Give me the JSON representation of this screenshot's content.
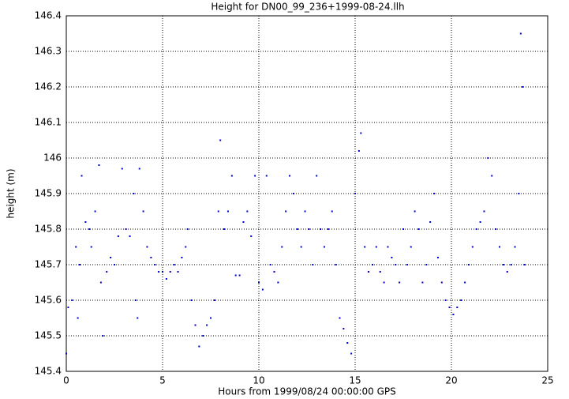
{
  "chart_data": {
    "type": "scatter",
    "title": "Height for DN00_99_236+1999-08-24.llh",
    "x_label": "Hours from 1999/08/24 00:00:00 GPS",
    "y_label": "height (m)",
    "color": "#0000cc",
    "grid": true,
    "xlim": [
      0,
      25
    ],
    "xticks": [
      0,
      5,
      10,
      15,
      20,
      25
    ],
    "ylim": [
      145.4,
      146.4
    ],
    "yticks": [
      145.4,
      145.5,
      145.6,
      145.7,
      145.8,
      145.9,
      146,
      146.1,
      146.2,
      146.3,
      146.4
    ],
    "x": [
      0.0,
      0.1,
      0.3,
      0.5,
      0.6,
      0.7,
      0.8,
      1.0,
      1.2,
      1.3,
      1.5,
      1.7,
      1.8,
      1.9,
      2.1,
      2.3,
      2.5,
      2.7,
      2.9,
      3.1,
      3.3,
      3.5,
      3.6,
      3.7,
      3.8,
      4.0,
      4.2,
      4.4,
      4.6,
      4.8,
      5.0,
      5.2,
      5.4,
      5.6,
      5.8,
      6.0,
      6.2,
      6.3,
      6.5,
      6.7,
      6.9,
      7.1,
      7.3,
      7.5,
      7.7,
      7.9,
      8.0,
      8.2,
      8.4,
      8.6,
      8.8,
      9.0,
      9.2,
      9.4,
      9.6,
      9.8,
      10.0,
      10.2,
      10.4,
      10.6,
      10.8,
      11.0,
      11.2,
      11.4,
      11.6,
      11.8,
      12.0,
      12.2,
      12.4,
      12.6,
      12.8,
      13.0,
      13.2,
      13.4,
      13.6,
      13.8,
      14.0,
      14.2,
      14.4,
      14.6,
      14.8,
      15.0,
      15.2,
      15.3,
      15.5,
      15.7,
      15.9,
      16.1,
      16.3,
      16.5,
      16.7,
      16.9,
      17.1,
      17.3,
      17.5,
      17.7,
      17.9,
      18.1,
      18.3,
      18.5,
      18.7,
      18.9,
      19.1,
      19.3,
      19.5,
      19.7,
      19.9,
      20.1,
      20.3,
      20.5,
      20.7,
      20.9,
      21.1,
      21.3,
      21.5,
      21.7,
      21.9,
      22.1,
      22.3,
      22.5,
      22.7,
      22.9,
      23.1,
      23.3,
      23.5,
      23.6,
      23.7,
      23.8
    ],
    "values": [
      145.45,
      145.58,
      145.6,
      145.75,
      145.55,
      145.7,
      145.95,
      145.82,
      145.8,
      145.75,
      145.85,
      145.98,
      145.65,
      145.5,
      145.68,
      145.72,
      145.7,
      145.78,
      145.97,
      145.8,
      145.78,
      145.9,
      145.6,
      145.55,
      145.97,
      145.85,
      145.75,
      145.72,
      145.7,
      145.68,
      145.68,
      145.66,
      145.68,
      145.7,
      145.68,
      145.72,
      145.75,
      145.8,
      145.6,
      145.53,
      145.47,
      145.5,
      145.53,
      145.55,
      145.6,
      145.85,
      146.05,
      145.8,
      145.85,
      145.95,
      145.67,
      145.67,
      145.82,
      145.85,
      145.78,
      145.95,
      145.65,
      145.63,
      145.95,
      145.7,
      145.68,
      145.65,
      145.75,
      145.85,
      145.95,
      145.9,
      145.8,
      145.75,
      145.85,
      145.8,
      145.7,
      145.95,
      145.8,
      145.75,
      145.8,
      145.85,
      145.7,
      145.55,
      145.52,
      145.48,
      145.45,
      145.9,
      146.02,
      146.07,
      145.75,
      145.68,
      145.7,
      145.75,
      145.68,
      145.65,
      145.75,
      145.72,
      145.7,
      145.65,
      145.8,
      145.7,
      145.75,
      145.85,
      145.8,
      145.65,
      145.7,
      145.82,
      145.9,
      145.72,
      145.65,
      145.6,
      145.58,
      145.56,
      145.58,
      145.6,
      145.65,
      145.7,
      145.75,
      145.8,
      145.82,
      145.85,
      146.0,
      145.95,
      145.8,
      145.75,
      145.7,
      145.68,
      145.7,
      145.75,
      145.9,
      146.35,
      146.2,
      145.7
    ]
  }
}
